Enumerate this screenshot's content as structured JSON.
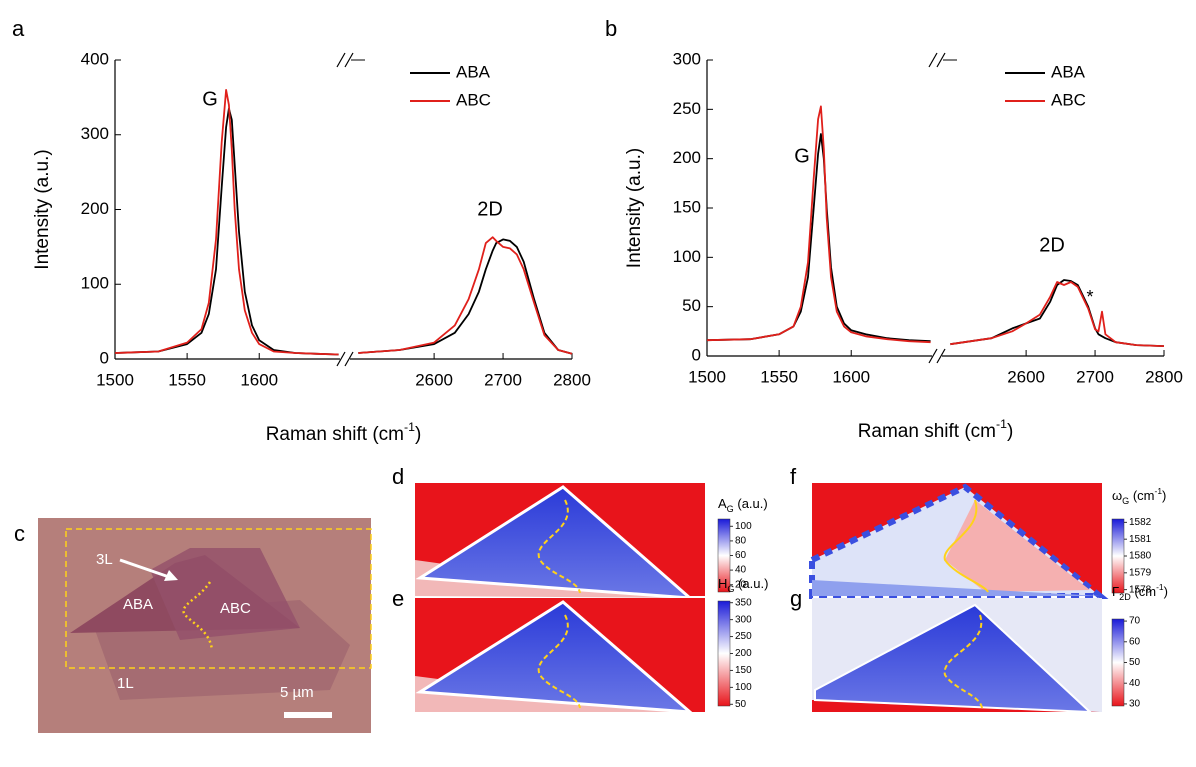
{
  "chart_data": [
    {
      "type": "line",
      "label": "a",
      "ylabel": "Intensity (a.u.)",
      "xlabel": [
        {
          "text": "Raman shift (cm"
        },
        {
          "text": "-1",
          "sup": true
        },
        {
          "text": ")"
        }
      ],
      "ylim": [
        0,
        400
      ],
      "yticks": [
        0,
        100,
        200,
        300,
        400
      ],
      "x_segments": [
        {
          "xlim": [
            1500,
            1656
          ],
          "xticks": [
            1500,
            1550,
            1600
          ]
        },
        {
          "xlim": [
            2478,
            2800
          ],
          "xticks": [
            2600,
            2700,
            2800
          ]
        }
      ],
      "annotations": [
        "G",
        "2D"
      ],
      "x": [
        1500,
        1530,
        1550,
        1560,
        1565,
        1570,
        1574,
        1577,
        1579,
        1581,
        1583,
        1586,
        1590,
        1595,
        1600,
        1610,
        1625,
        1640,
        1655,
        2490,
        2550,
        2600,
        2630,
        2650,
        2665,
        2675,
        2685,
        2690,
        2700,
        2710,
        2720,
        2730,
        2745,
        2760,
        2780,
        2800
      ],
      "series": [
        {
          "name": "ABA",
          "color": "#000000",
          "values": [
            8,
            10,
            20,
            35,
            60,
            120,
            230,
            310,
            335,
            320,
            260,
            170,
            90,
            45,
            25,
            12,
            8,
            7,
            6,
            8,
            12,
            20,
            35,
            60,
            90,
            120,
            145,
            155,
            160,
            158,
            150,
            130,
            80,
            35,
            12,
            7
          ]
        },
        {
          "name": "ABC",
          "color": "#e0201b",
          "values": [
            8,
            10,
            22,
            40,
            75,
            160,
            290,
            360,
            340,
            280,
            200,
            120,
            65,
            35,
            20,
            10,
            8,
            7,
            6,
            8,
            12,
            22,
            45,
            80,
            120,
            155,
            163,
            158,
            150,
            148,
            140,
            120,
            75,
            32,
            12,
            7
          ]
        }
      ]
    },
    {
      "type": "line",
      "label": "b",
      "ylabel": "Intensity (a.u.)",
      "xlabel": [
        {
          "text": "Raman shift (cm"
        },
        {
          "text": "-1",
          "sup": true
        },
        {
          "text": ")"
        }
      ],
      "ylim": [
        0,
        300
      ],
      "yticks": [
        0,
        50,
        100,
        150,
        200,
        250,
        300
      ],
      "x_segments": [
        {
          "xlim": [
            1500,
            1656
          ],
          "xticks": [
            1500,
            1550,
            1600
          ]
        },
        {
          "xlim": [
            2478,
            2800
          ],
          "xticks": [
            2600,
            2700,
            2800
          ]
        }
      ],
      "annotations": [
        "G",
        "2D",
        "*"
      ],
      "x": [
        1500,
        1530,
        1550,
        1560,
        1565,
        1570,
        1574,
        1577,
        1579,
        1581,
        1583,
        1586,
        1590,
        1595,
        1600,
        1610,
        1625,
        1640,
        1655,
        2490,
        2550,
        2580,
        2600,
        2620,
        2635,
        2645,
        2655,
        2665,
        2675,
        2690,
        2700,
        2705,
        2710,
        2715,
        2730,
        2760,
        2800
      ],
      "series": [
        {
          "name": "ABA",
          "color": "#000000",
          "values": [
            16,
            17,
            22,
            30,
            45,
            80,
            150,
            205,
            225,
            200,
            150,
            90,
            50,
            33,
            26,
            22,
            18,
            16,
            15,
            12,
            18,
            28,
            33,
            38,
            55,
            72,
            77,
            76,
            72,
            50,
            28,
            22,
            20,
            18,
            14,
            11,
            10
          ]
        },
        {
          "name": "ABC",
          "color": "#e0201b",
          "values": [
            16,
            17,
            22,
            30,
            50,
            95,
            180,
            240,
            253,
            210,
            140,
            80,
            45,
            30,
            24,
            20,
            17,
            15,
            14,
            12,
            18,
            25,
            33,
            42,
            60,
            75,
            72,
            75,
            70,
            48,
            27,
            25,
            45,
            22,
            14,
            11,
            10
          ]
        }
      ]
    },
    {
      "type": "heatmap",
      "label": "d",
      "colorbar_label": [
        {
          "text": "A"
        },
        {
          "text": "G",
          "sub": true
        },
        {
          "text": " (a.u.)"
        }
      ],
      "clim": [
        10,
        110
      ],
      "cticks": [
        20,
        40,
        60,
        80,
        100
      ]
    },
    {
      "type": "heatmap",
      "label": "e",
      "colorbar_label": [
        {
          "text": "H"
        },
        {
          "text": "G",
          "sub": true
        },
        {
          "text": " (a.u.)"
        }
      ],
      "clim": [
        45,
        355
      ],
      "cticks": [
        50,
        100,
        150,
        200,
        250,
        300,
        350
      ]
    },
    {
      "type": "heatmap",
      "label": "f",
      "colorbar_label": [
        {
          "text": "ω"
        },
        {
          "text": "G",
          "sub": true
        },
        {
          "text": " (cm"
        },
        {
          "text": "-1",
          "sup": true
        },
        {
          "text": ")"
        }
      ],
      "clim": [
        1577.8,
        1582.2
      ],
      "cticks": [
        1578,
        1579,
        1580,
        1581,
        1582
      ]
    },
    {
      "type": "heatmap",
      "label": "g",
      "colorbar_label": [
        {
          "text": "Γ"
        },
        {
          "text": "2D",
          "sub": true
        },
        {
          "text": " (cm"
        },
        {
          "text": "-1",
          "sup": true
        },
        {
          "text": ")"
        }
      ],
      "clim": [
        29,
        71
      ],
      "cticks": [
        30,
        40,
        50,
        60,
        70
      ]
    }
  ],
  "image_panel": {
    "label": "c",
    "texts": [
      "3L",
      "ABA",
      "ABC",
      "1L",
      "5 µm"
    ]
  }
}
